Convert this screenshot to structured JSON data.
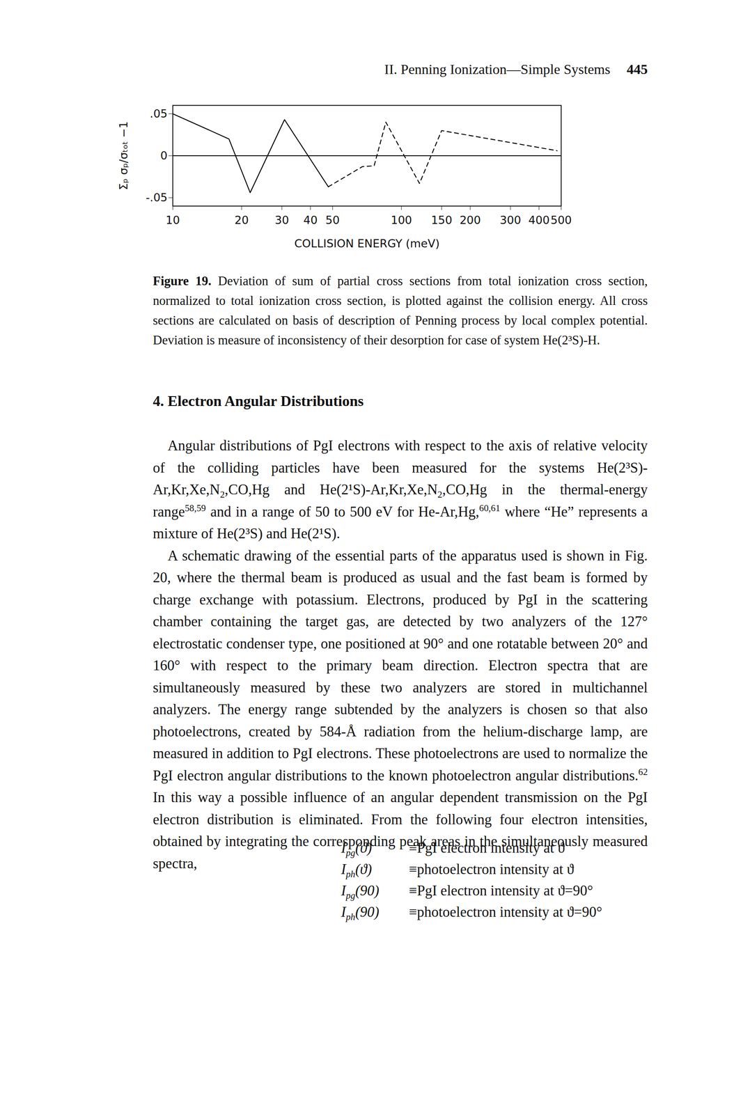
{
  "header": {
    "running_title": "II. Penning Ionization—Simple Systems",
    "page": "445"
  },
  "chart_data": {
    "type": "line",
    "xlabel": "COLLISION ENERGY (meV)",
    "ylabel": "Σₚ σₚ/σₜₒₜ −1",
    "log": "x",
    "xlim": [
      10,
      500
    ],
    "xticks": [
      10,
      20,
      30,
      40,
      50,
      100,
      150,
      200,
      300,
      400,
      500
    ],
    "ylim": [
      -0.06,
      0.06
    ],
    "yticks": [
      {
        "value": 0.05,
        "label": ".05"
      },
      {
        "value": 0,
        "label": "0"
      },
      {
        "value": -0.05,
        "label": "-.05"
      }
    ],
    "grid": false,
    "series": [
      {
        "color": "#000000",
        "line_style": "solid",
        "x": [
          10,
          17.6,
          21.8,
          30.8,
          47.9
        ],
        "values": [
          0.05,
          0.02,
          -0.044,
          0.043,
          -0.037
        ]
      },
      {
        "color": "#000000",
        "line_style": "dashed",
        "x": [
          47.9,
          67.5,
          76,
          85.5,
          120,
          150,
          480
        ],
        "values": [
          -0.037,
          -0.013,
          -0.012,
          0.04,
          -0.033,
          0.03,
          0.006
        ]
      }
    ]
  },
  "caption": {
    "label": "Figure 19.",
    "text": "Deviation of sum of partial cross sections from total ionization cross section, normalized to total ionization cross section, is plotted against the collision energy. All cross sections are calculated on basis of description of Penning process by local complex potential. Deviation is measure of inconsistency of their desorption for case of system He(2³S)-H."
  },
  "heading": "4. Electron Angular Distributions",
  "paragraphs": [
    [
      "Angular distributions of PgI electrons with respect to the axis of relative velocity of the colliding particles have been measured for the systems He(2³S)-Ar,Kr,Xe,N",
      {
        "sub": "2"
      },
      ",CO,Hg and He(2¹S)-Ar,Kr,Xe,N",
      {
        "sub": "2"
      },
      ",CO,Hg in the thermal-energy range",
      {
        "sup": "58,59"
      },
      " and in a range of 50 to 500 eV for He-Ar,Hg,",
      {
        "sup": "60,61"
      },
      " where “He” represents a mixture of He(2³S) and He(2¹S)."
    ],
    [
      "A schematic drawing of the essential parts of the apparatus used is shown in Fig. 20, where the thermal beam is produced as usual and the fast beam is formed by charge exchange with potassium. Electrons, produced by PgI in the scattering chamber containing the target gas, are detected by two analyzers of the 127° electrostatic condenser type, one positioned at 90° and one rotatable between 20° and 160° with respect to the primary beam direction. Electron spectra that are simultaneously measured by these two analyzers are stored in multichannel analyzers. The energy range subtended by the analyzers is chosen so that also photoelectrons, created by 584-Å radiation from the helium-discharge lamp, are measured in addition to PgI electrons. These photoelectrons are used to normalize the PgI electron angular distributions to the known photoelectron angular distributions.",
      {
        "sup": "62"
      },
      " In this way a possible influence of an angular dependent transmission on the PgI electron distribution is eliminated. From the following four electron intensities, obtained by integrating the corresponding peak areas in the simultaneously measured spectra,"
    ]
  ],
  "definitions": [
    {
      "symbol": [
        "I",
        {
          "sub": "pg"
        },
        "(ϑ)"
      ],
      "definition": "≡PgI electron intensity at ϑ"
    },
    {
      "symbol": [
        "I",
        {
          "sub": "ph"
        },
        "(ϑ)"
      ],
      "definition": "≡photoelectron intensity at ϑ"
    },
    {
      "symbol": [
        "I",
        {
          "sub": "pg"
        },
        "(90)"
      ],
      "definition": "≡PgI electron intensity at ϑ=90°"
    },
    {
      "symbol": [
        "I",
        {
          "sub": "ph"
        },
        "(90)"
      ],
      "definition": "≡photoelectron intensity at ϑ=90°"
    }
  ]
}
